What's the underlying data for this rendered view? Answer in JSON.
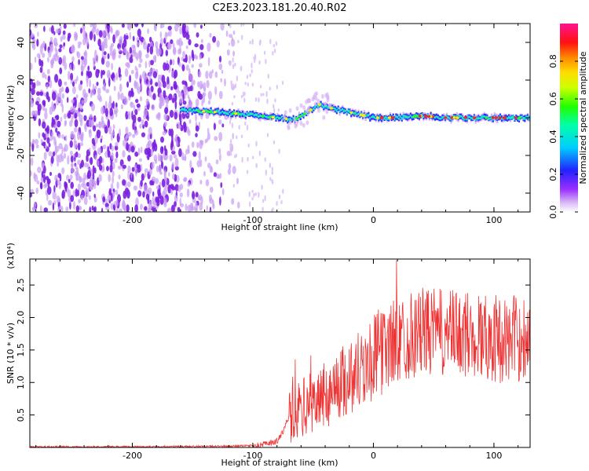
{
  "title": "C2E3.2023.181.20.40.R02",
  "chart_data": [
    {
      "type": "heatmap",
      "xlabel": "Height of straight line (km)",
      "ylabel": "Frequency (Hz)",
      "xlim": [
        -285,
        130
      ],
      "ylim": [
        -50,
        50
      ],
      "x_ticks": [
        -200,
        -100,
        0,
        100
      ],
      "y_ticks": [
        -40,
        -20,
        0,
        20,
        40
      ],
      "colorbar": {
        "label": "Normalized spectral amplitude",
        "range": [
          0.0,
          1.0
        ],
        "ticks": [
          0.0,
          0.2,
          0.4,
          0.6,
          0.8
        ],
        "tick_labels": [
          "0.0",
          "0.2",
          "0.4",
          "0.6",
          "0.8"
        ],
        "colormap": [
          "#ffffff",
          "#e4c8f8",
          "#8a2be2",
          "#0000ff",
          "#00ffff",
          "#00ff00",
          "#ffff00",
          "#ff8000",
          "#ff0000",
          "#ff1493"
        ]
      },
      "centerline": {
        "x": [
          -160,
          -130,
          -110,
          -95,
          -80,
          -65,
          -55,
          -45,
          -35,
          -20,
          0,
          20,
          40,
          60,
          80,
          100,
          130
        ],
        "y": [
          4,
          3,
          2,
          1,
          0,
          -1,
          3,
          7,
          5,
          3,
          0,
          0,
          1,
          0,
          0,
          0,
          0
        ]
      },
      "grid": false
    },
    {
      "type": "line",
      "xlabel": "Height of straight line (km)",
      "ylabel": "SNR (10 * v/v)",
      "y_multiplier": "(x10⁴)",
      "xlim": [
        -285,
        130
      ],
      "ylim": [
        0,
        2.9
      ],
      "x_ticks": [
        -200,
        -100,
        0,
        100
      ],
      "y_ticks": [
        0.5,
        1.0,
        1.5,
        2.0,
        2.5
      ],
      "y_tick_labels": [
        "0.5",
        "1.0",
        "1.5",
        "2.0",
        "2.5"
      ],
      "series": [
        {
          "color": "#ee3333",
          "x": [
            -285,
            -200,
            -120,
            -100,
            -90,
            -80,
            -75,
            -70,
            -60,
            -50,
            -40,
            -30,
            -20,
            -10,
            0,
            10,
            20,
            30,
            40,
            50,
            60,
            70,
            80,
            90,
            100,
            110,
            120,
            130
          ],
          "y": [
            0.01,
            0.01,
            0.02,
            0.03,
            0.05,
            0.1,
            0.25,
            0.5,
            0.65,
            0.75,
            0.85,
            1.0,
            1.15,
            1.3,
            1.45,
            1.6,
            1.72,
            1.8,
            1.85,
            1.85,
            1.82,
            1.82,
            1.8,
            1.8,
            1.75,
            1.72,
            1.75,
            1.8
          ]
        }
      ],
      "grid": false
    }
  ]
}
